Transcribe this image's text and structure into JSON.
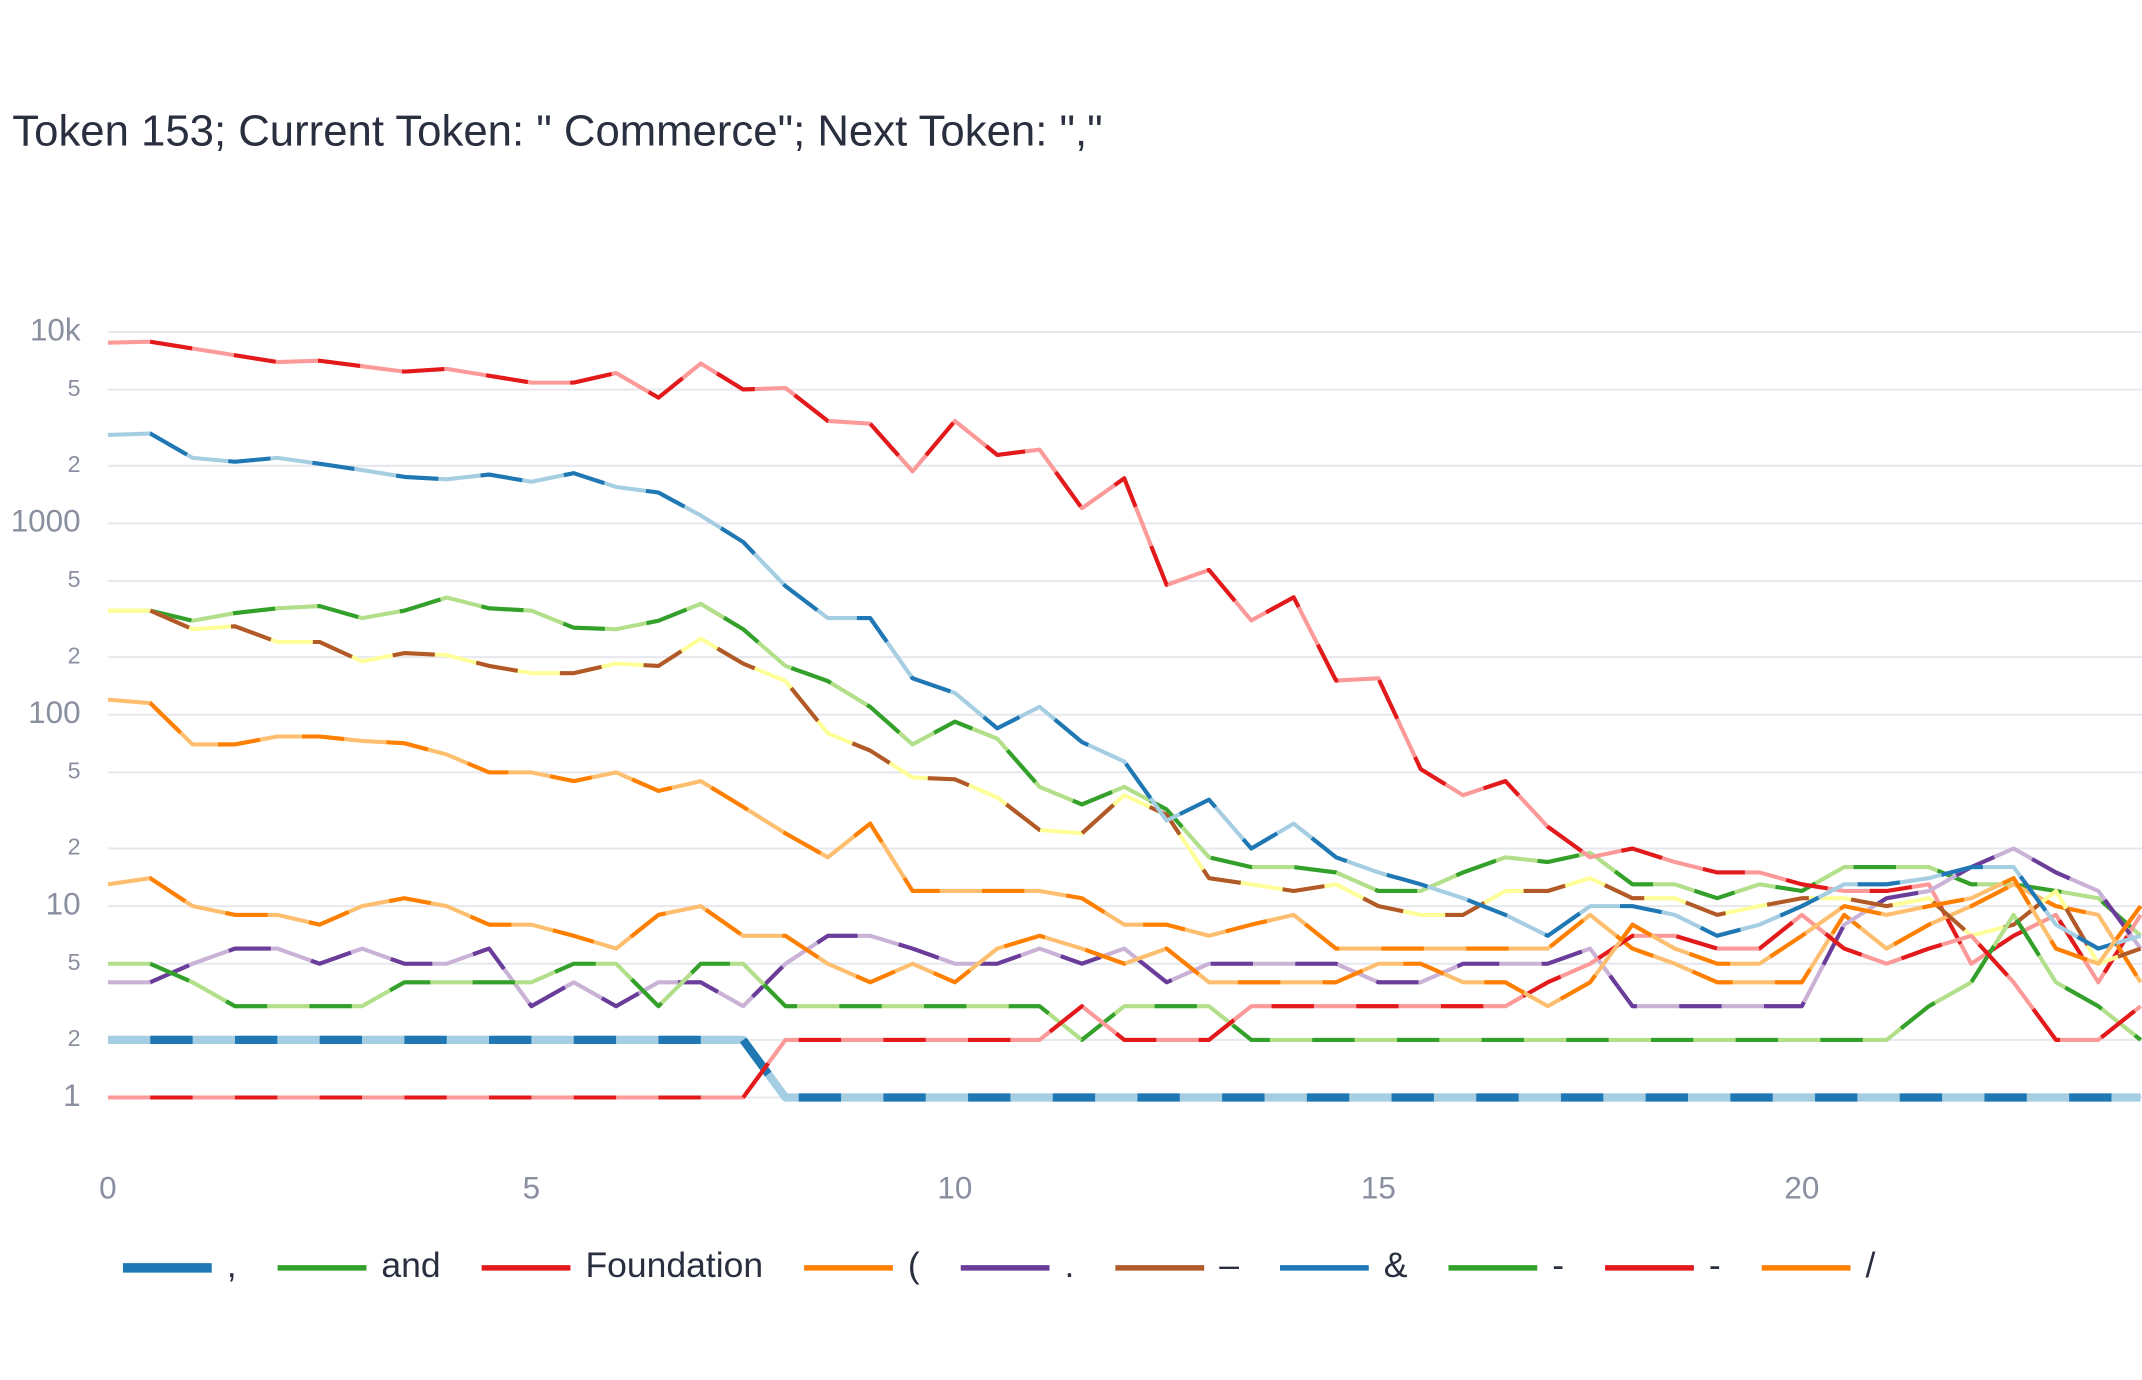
{
  "chart_data": {
    "type": "line",
    "title": "Token 153; Current Token: \" Commerce\"; Next Token: \",\"",
    "log_y": true,
    "grid": true,
    "legend_position": "bottom",
    "xlim": [
      0,
      24
    ],
    "xticks": [
      0,
      5,
      10,
      15,
      20
    ],
    "ylim": [
      0.7,
      13000
    ],
    "yticks": [
      1,
      2,
      5,
      10,
      {
        "value": 20,
        "label": "2"
      },
      {
        "value": 50,
        "label": "5"
      },
      100,
      {
        "value": 200,
        "label": "2"
      },
      {
        "value": 500,
        "label": "5"
      },
      1000,
      {
        "value": 2000,
        "label": "2"
      },
      {
        "value": 5000,
        "label": "5"
      },
      {
        "value": 10000,
        "label": "10k"
      }
    ],
    "x": [
      0,
      0.5,
      1,
      1.5,
      2,
      2.5,
      3,
      3.5,
      4,
      4.5,
      5,
      5.5,
      6,
      6.5,
      7,
      7.5,
      8,
      8.5,
      9,
      9.5,
      10,
      10.5,
      11,
      11.5,
      12,
      12.5,
      13,
      13.5,
      14,
      14.5,
      15,
      15.5,
      16,
      16.5,
      17,
      17.5,
      18,
      18.5,
      19,
      19.5,
      20,
      20.5,
      21,
      21.5,
      22,
      22.5,
      23,
      23.5,
      24
    ],
    "series": [
      {
        "name": ",",
        "color": "#1f78b4",
        "light_color": "#a6cee3",
        "line_width": 6,
        "values": [
          2,
          2,
          2,
          2,
          2,
          2,
          2,
          2,
          2,
          2,
          2,
          2,
          2,
          2,
          2,
          2,
          1,
          1,
          1,
          1,
          1,
          1,
          1,
          1,
          1,
          1,
          1,
          1,
          1,
          1,
          1,
          1,
          1,
          1,
          1,
          1,
          1,
          1,
          1,
          1,
          1,
          1,
          1,
          1,
          1,
          1,
          1,
          1,
          1
        ]
      },
      {
        "name": "and",
        "color": "#33a02c",
        "light_color": "#b2df8a",
        "values": [
          350,
          350,
          310,
          340,
          360,
          370,
          320,
          350,
          410,
          360,
          350,
          285,
          280,
          310,
          380,
          280,
          180,
          150,
          110,
          70,
          92,
          75,
          42,
          34,
          42,
          32,
          18,
          16,
          16,
          15,
          12,
          12,
          15,
          18,
          17,
          19,
          13,
          13,
          11,
          13,
          12,
          16,
          16,
          16,
          13,
          13,
          12,
          11,
          7
        ]
      },
      {
        "name": "Foundation",
        "color": "#e31a1c",
        "light_color": "#fb9a99",
        "values": [
          8800,
          8900,
          8200,
          7560,
          6970,
          7080,
          6630,
          6210,
          6420,
          5910,
          5440,
          5440,
          6110,
          4540,
          6850,
          5010,
          5100,
          3430,
          3320,
          1870,
          3430,
          2280,
          2430,
          1200,
          1720,
          477,
          571,
          311,
          411,
          151,
          155,
          52,
          38,
          45,
          26,
          18,
          20,
          17,
          15,
          15,
          13,
          12,
          12,
          13,
          5,
          7,
          9,
          4,
          9
        ]
      },
      {
        "name": "(",
        "color": "#ff7f00",
        "light_color": "#fdbf6f",
        "values": [
          120,
          115,
          70,
          70,
          77,
          77,
          73,
          71,
          62,
          50,
          50,
          45,
          50,
          40,
          45,
          33,
          24,
          18,
          27,
          12,
          12,
          12,
          12,
          11,
          8,
          8,
          7,
          8,
          9,
          6,
          6,
          6,
          6,
          6,
          6,
          9,
          6,
          5,
          4,
          4,
          4,
          9,
          6,
          8,
          10,
          13,
          10,
          9,
          4
        ]
      },
      {
        "name": ".",
        "color": "#6a3d9a",
        "light_color": "#cab2d6",
        "values": [
          4,
          4,
          5,
          6,
          6,
          5,
          6,
          5,
          5,
          6,
          3,
          4,
          3,
          4,
          4,
          3,
          5,
          7,
          7,
          6,
          5,
          5,
          6,
          5,
          6,
          4,
          5,
          5,
          5,
          5,
          4,
          4,
          5,
          5,
          5,
          6,
          3,
          3,
          3,
          3,
          3,
          8,
          11,
          12,
          16,
          20,
          15,
          12,
          6
        ]
      },
      {
        "name": "–",
        "color": "#b15928",
        "light_color": "#ffff99",
        "values": [
          350,
          350,
          280,
          290,
          240,
          240,
          190,
          210,
          205,
          180,
          165,
          165,
          185,
          180,
          250,
          185,
          150,
          80,
          65,
          47,
          46,
          37,
          25,
          24,
          38,
          30,
          14,
          13,
          12,
          13,
          10,
          9,
          9,
          12,
          12,
          14,
          11,
          11,
          9,
          10,
          11,
          11,
          10,
          11,
          7,
          8,
          12,
          5,
          6
        ]
      },
      {
        "name": "&",
        "color": "#1f78b4",
        "light_color": "#a6cee3",
        "values": [
          2900,
          2950,
          2200,
          2100,
          2200,
          2050,
          1900,
          1750,
          1700,
          1800,
          1650,
          1830,
          1550,
          1450,
          1100,
          800,
          470,
          320,
          320,
          155,
          130,
          85,
          110,
          72,
          57,
          28,
          36,
          20,
          27,
          18,
          15,
          13,
          11,
          9,
          7,
          10,
          10,
          9,
          7,
          8,
          10,
          13,
          13,
          14,
          16,
          16,
          8,
          6,
          7
        ]
      },
      {
        "name": "-",
        "color": "#33a02c",
        "light_color": "#b2df8a",
        "values": [
          5,
          5,
          4,
          3,
          3,
          3,
          3,
          4,
          4,
          4,
          4,
          5,
          5,
          3,
          5,
          5,
          3,
          3,
          3,
          3,
          3,
          3,
          3,
          2,
          3,
          3,
          3,
          2,
          2,
          2,
          2,
          2,
          2,
          2,
          2,
          2,
          2,
          2,
          2,
          2,
          2,
          2,
          2,
          3,
          4,
          9,
          4,
          3,
          2
        ]
      },
      {
        "name": "-",
        "color": "#e31a1c",
        "light_color": "#fb9a99",
        "values": [
          1,
          1,
          1,
          1,
          1,
          1,
          1,
          1,
          1,
          1,
          1,
          1,
          1,
          1,
          1,
          1,
          2,
          2,
          2,
          2,
          2,
          2,
          2,
          3,
          2,
          2,
          2,
          3,
          3,
          3,
          3,
          3,
          3,
          3,
          4,
          5,
          7,
          7,
          6,
          6,
          9,
          6,
          5,
          6,
          7,
          4,
          2,
          2,
          3
        ]
      },
      {
        "name": "/",
        "color": "#ff7f00",
        "light_color": "#fdbf6f",
        "values": [
          13,
          14,
          10,
          9,
          9,
          8,
          10,
          11,
          10,
          8,
          8,
          7,
          6,
          9,
          10,
          7,
          7,
          5,
          4,
          5,
          4,
          6,
          7,
          6,
          5,
          6,
          4,
          4,
          4,
          4,
          5,
          5,
          4,
          4,
          3,
          4,
          8,
          6,
          5,
          5,
          7,
          10,
          9,
          10,
          11,
          14,
          6,
          5,
          10
        ]
      }
    ]
  }
}
